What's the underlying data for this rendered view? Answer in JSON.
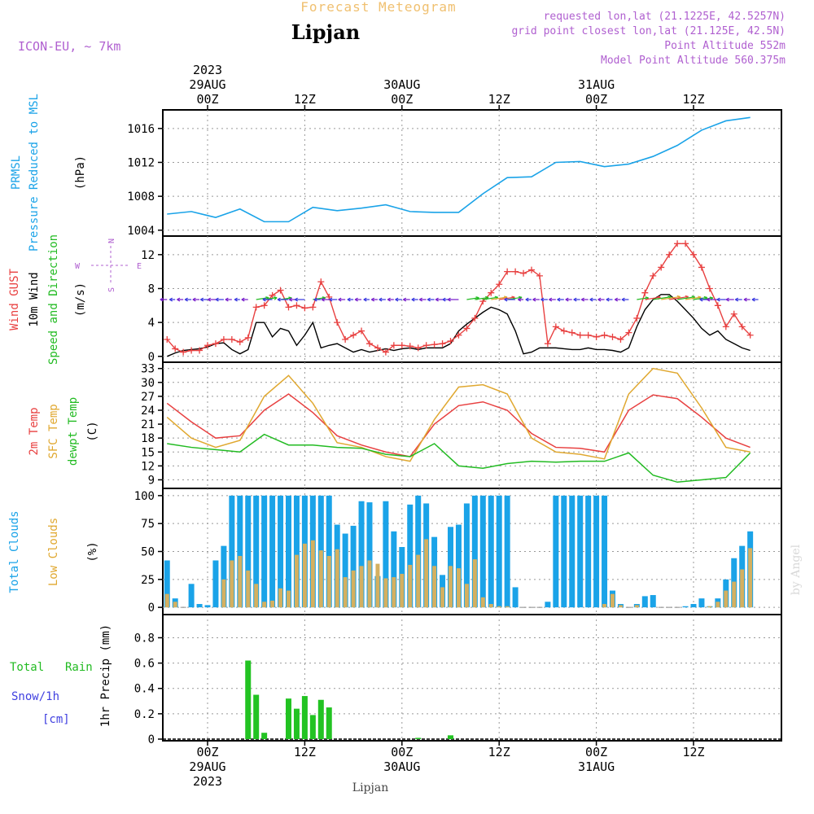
{
  "header": {
    "product": "Forecast Meteogram",
    "location": "Lipjan",
    "model": "ICON-EU, ~ 7km",
    "requested": "requested lon,lat (21.1225E, 42.5257N)",
    "grid_point": "grid point closest lon,lat (21.125E, 42.5N)",
    "point_altitude": "Point Altitude 552m",
    "model_altitude": "Model Point Altitude 560.375m",
    "footer_location": "Lipjan",
    "watermark": "by Angel"
  },
  "colors": {
    "pressure": "#1aa3e8",
    "gust": "#e84040",
    "wind": "#000000",
    "sfc_temp": "#e0a830",
    "temp2m": "#e84040",
    "dewpt": "#22bb22",
    "total_clouds": "#1aa3e8",
    "low_clouds": "#d4b060",
    "rain": "#22c322",
    "snow": "#4040e0",
    "header_purple": "#b060d0",
    "header_orange": "#f0c070"
  },
  "chart_data": [
    {
      "id": "pressure",
      "type": "line",
      "label1": "PRMSL",
      "label2": "Pressure Reduced to MSL",
      "unit": "(hPa)",
      "ylim": [
        1003.5,
        1018
      ],
      "yticks": [
        1004,
        1008,
        1012,
        1016
      ],
      "x_hours_start": 0,
      "series": [
        {
          "name": "PRMSL",
          "x": [
            0,
            3,
            6,
            9,
            12,
            15,
            18,
            21,
            24,
            27,
            30,
            33,
            36,
            39,
            42,
            45,
            48,
            51,
            54,
            57,
            60,
            63,
            66,
            69,
            72
          ],
          "values": [
            1005.9,
            1006.2,
            1005.5,
            1006.5,
            1005.0,
            1005.0,
            1006.7,
            1006.3,
            1006.6,
            1007.0,
            1006.2,
            1006.1,
            1006.1,
            1008.3,
            1010.2,
            1010.3,
            1012.0,
            1012.1,
            1011.5,
            1011.8,
            1012.7,
            1014.0,
            1015.8,
            1016.9,
            1017.3
          ]
        }
      ]
    },
    {
      "id": "wind",
      "type": "line",
      "label1": "Wind GUST",
      "label2": "10m Wind",
      "label3": "Speed and Direction",
      "unit": "(m/s)",
      "compass": {
        "n": "N",
        "s": "S",
        "w": "W",
        "e": "E"
      },
      "ylim": [
        -0.5,
        14
      ],
      "yticks": [
        0,
        4,
        8,
        12
      ],
      "arrow_level": 6.7,
      "series": [
        {
          "name": "Wind GUST",
          "x": [
            0,
            1,
            2,
            3,
            4,
            5,
            6,
            7,
            8,
            9,
            10,
            11,
            12,
            13,
            14,
            15,
            16,
            17,
            18,
            19,
            20,
            21,
            22,
            23,
            24,
            25,
            26,
            27,
            28,
            29,
            30,
            31,
            32,
            33,
            34,
            35,
            36,
            37,
            38,
            39,
            40,
            41,
            42,
            43,
            44,
            45,
            46,
            47,
            48,
            49,
            50,
            51,
            52,
            53,
            54,
            55,
            56,
            57,
            58,
            59,
            60,
            61,
            62,
            63,
            64,
            65,
            66,
            67,
            68,
            69,
            70,
            71,
            72
          ],
          "values": [
            2.0,
            0.9,
            0.5,
            0.7,
            0.7,
            1.3,
            1.5,
            2.0,
            2.0,
            1.7,
            2.2,
            5.8,
            6.0,
            7.2,
            7.8,
            5.8,
            6.0,
            5.7,
            5.8,
            8.8,
            7.0,
            4.0,
            2.0,
            2.5,
            3.0,
            1.5,
            1.0,
            0.5,
            1.3,
            1.3,
            1.2,
            1.0,
            1.3,
            1.4,
            1.5,
            1.8,
            2.5,
            3.3,
            4.5,
            6.5,
            7.5,
            8.5,
            10.0,
            10.0,
            9.8,
            10.2,
            9.5,
            1.5,
            3.5,
            3.0,
            2.8,
            2.5,
            2.5,
            2.3,
            2.5,
            2.3,
            2.0,
            2.8,
            4.5,
            7.5,
            9.5,
            10.5,
            12.0,
            13.3,
            13.3,
            12.0,
            10.5,
            8.0,
            6.0,
            3.5,
            5.0,
            3.5,
            2.5
          ]
        },
        {
          "name": "10m Wind",
          "x": [
            0,
            1,
            2,
            3,
            4,
            5,
            6,
            7,
            8,
            9,
            10,
            11,
            12,
            13,
            14,
            15,
            16,
            17,
            18,
            19,
            20,
            21,
            22,
            23,
            24,
            25,
            26,
            27,
            28,
            29,
            30,
            31,
            32,
            33,
            34,
            35,
            36,
            37,
            38,
            39,
            40,
            41,
            42,
            43,
            44,
            45,
            46,
            47,
            48,
            49,
            50,
            51,
            52,
            53,
            54,
            55,
            56,
            57,
            58,
            59,
            60,
            61,
            62,
            63,
            64,
            65,
            66,
            67,
            68,
            69,
            70,
            71,
            72
          ],
          "values": [
            0.0,
            0.4,
            0.7,
            0.8,
            0.9,
            1.1,
            1.5,
            1.6,
            0.8,
            0.3,
            0.8,
            4.0,
            4.0,
            2.3,
            3.3,
            3.0,
            1.3,
            2.5,
            4.0,
            1.0,
            1.3,
            1.5,
            1.0,
            0.5,
            0.8,
            0.5,
            0.7,
            0.9,
            0.7,
            0.9,
            1.0,
            0.8,
            1.0,
            1.0,
            1.0,
            1.5,
            3.0,
            3.8,
            4.5,
            5.2,
            5.8,
            5.5,
            5.0,
            3.0,
            0.3,
            0.5,
            1.0,
            1.0,
            1.0,
            0.9,
            0.8,
            0.8,
            1.0,
            0.8,
            0.8,
            0.7,
            0.5,
            1.0,
            3.5,
            5.5,
            6.7,
            7.3,
            7.3,
            6.5,
            5.5,
            4.5,
            3.3,
            2.5,
            3.0,
            2.0,
            1.5,
            1.0,
            0.7
          ]
        }
      ]
    },
    {
      "id": "temperature",
      "type": "line",
      "label1": "2m Temp",
      "label2": "SFC Temp",
      "label3": "dewpt Temp",
      "unit": "(C)",
      "ylim": [
        7.5,
        34
      ],
      "yticks": [
        9,
        12,
        15,
        18,
        21,
        24,
        27,
        30,
        33
      ],
      "series": [
        {
          "name": "2m Temp",
          "x": [
            0,
            3,
            6,
            9,
            12,
            15,
            18,
            21,
            24,
            27,
            30,
            33,
            36,
            39,
            42,
            45,
            48,
            51,
            54,
            57,
            60,
            63,
            66,
            69,
            72
          ],
          "values": [
            25.5,
            21.5,
            18.0,
            18.5,
            24.0,
            27.5,
            23.5,
            18.5,
            16.5,
            15.0,
            14.0,
            21.0,
            25.0,
            25.8,
            24.0,
            19.0,
            16.0,
            15.8,
            15.0,
            24.0,
            27.3,
            26.5,
            22.5,
            18.0,
            16.0
          ]
        },
        {
          "name": "SFC Temp",
          "x": [
            0,
            3,
            6,
            9,
            12,
            15,
            18,
            21,
            24,
            27,
            30,
            33,
            36,
            39,
            42,
            45,
            48,
            51,
            54,
            57,
            60,
            63,
            66,
            69,
            72
          ],
          "values": [
            22.5,
            18.0,
            16.0,
            17.5,
            27.0,
            31.5,
            25.5,
            17.0,
            16.0,
            14.0,
            13.0,
            22.0,
            29.0,
            29.5,
            27.5,
            18.0,
            15.0,
            14.5,
            13.5,
            27.5,
            33.0,
            32.0,
            24.5,
            16.0,
            15.0
          ]
        },
        {
          "name": "dewpt Temp",
          "x": [
            0,
            3,
            6,
            9,
            12,
            15,
            18,
            21,
            24,
            27,
            30,
            33,
            36,
            39,
            42,
            45,
            48,
            51,
            54,
            57,
            60,
            63,
            66,
            69,
            72
          ],
          "values": [
            16.8,
            16.0,
            15.5,
            15.0,
            18.8,
            16.5,
            16.5,
            16.0,
            15.8,
            14.5,
            14.0,
            16.8,
            12.0,
            11.5,
            12.5,
            13.0,
            12.8,
            13.0,
            13.0,
            14.8,
            10.0,
            8.5,
            9.0,
            9.5,
            14.8
          ]
        }
      ]
    },
    {
      "id": "clouds",
      "type": "bar",
      "label1": "Total Clouds",
      "label2": "Low Clouds",
      "unit": "(%)",
      "ylim": [
        -5,
        105
      ],
      "yticks": [
        0,
        25,
        50,
        75,
        100
      ],
      "series": [
        {
          "name": "Total Clouds",
          "x": [
            0,
            1,
            2,
            3,
            4,
            5,
            6,
            7,
            8,
            9,
            10,
            11,
            12,
            13,
            14,
            15,
            16,
            17,
            18,
            19,
            20,
            21,
            22,
            23,
            24,
            25,
            26,
            27,
            28,
            29,
            30,
            31,
            32,
            33,
            34,
            35,
            36,
            37,
            38,
            39,
            40,
            41,
            42,
            43,
            44,
            45,
            46,
            47,
            48,
            49,
            50,
            51,
            52,
            53,
            54,
            55,
            56,
            57,
            58,
            59,
            60,
            61,
            62,
            63,
            64,
            65,
            66,
            67,
            68,
            69,
            70,
            71,
            72
          ],
          "values": [
            42,
            8,
            0,
            21,
            3,
            2,
            42,
            55,
            100,
            100,
            100,
            100,
            100,
            100,
            100,
            100,
            100,
            100,
            100,
            100,
            100,
            74,
            66,
            73,
            95,
            94,
            28,
            95,
            68,
            54,
            92,
            100,
            93,
            63,
            29,
            72,
            74,
            93,
            100,
            100,
            100,
            100,
            100,
            18,
            0,
            0,
            0,
            5,
            100,
            100,
            100,
            100,
            100,
            100,
            100,
            15,
            3,
            0,
            3,
            10,
            11,
            0,
            0,
            0,
            1,
            3,
            8,
            1,
            8,
            25,
            44,
            55,
            68
          ]
        },
        {
          "name": "Low Clouds",
          "x": [
            0,
            1,
            2,
            3,
            4,
            5,
            6,
            7,
            8,
            9,
            10,
            11,
            12,
            13,
            14,
            15,
            16,
            17,
            18,
            19,
            20,
            21,
            22,
            23,
            24,
            25,
            26,
            27,
            28,
            29,
            30,
            31,
            32,
            33,
            34,
            35,
            36,
            37,
            38,
            39,
            40,
            41,
            42,
            43,
            44,
            45,
            46,
            47,
            48,
            49,
            50,
            51,
            52,
            53,
            54,
            55,
            56,
            57,
            58,
            59,
            60,
            61,
            62,
            63,
            64,
            65,
            66,
            67,
            68,
            69,
            70,
            71,
            72
          ],
          "values": [
            12,
            5,
            0,
            0,
            0,
            0,
            0,
            25,
            42,
            46,
            33,
            21,
            5,
            6,
            17,
            15,
            47,
            57,
            60,
            51,
            46,
            52,
            27,
            33,
            37,
            42,
            39,
            26,
            27,
            30,
            38,
            47,
            61,
            37,
            18,
            37,
            35,
            21,
            43,
            9,
            3,
            1,
            1,
            0,
            0,
            0,
            0,
            0,
            0,
            0,
            0,
            0,
            0,
            0,
            3,
            12,
            2,
            0,
            2,
            0,
            0,
            0,
            0,
            0,
            0,
            0,
            0,
            1,
            5,
            15,
            23,
            34,
            53
          ]
        }
      ]
    },
    {
      "id": "precip",
      "type": "bar",
      "label_total": "Total",
      "label_rain": "Rain",
      "label_snow": "Snow/1h",
      "label_cm": "[cm]",
      "unit": "1hr Precip (mm)",
      "ylim": [
        0,
        0.97
      ],
      "yticks": [
        0,
        0.2,
        0.4,
        0.6,
        0.8
      ],
      "ytick_labels": [
        "0",
        "0.2",
        "0.4",
        "0.6",
        "0.8"
      ],
      "series": [
        {
          "name": "Rain",
          "x": [
            10,
            11,
            12,
            15,
            16,
            17,
            18,
            19,
            20,
            31,
            35
          ],
          "values": [
            0.62,
            0.35,
            0.05,
            0.32,
            0.24,
            0.34,
            0.19,
            0.31,
            0.25,
            0.01,
            0.03
          ]
        }
      ]
    }
  ],
  "time_axis": {
    "top": [
      {
        "hour": 0,
        "lines": [
          "2023",
          "29AUG",
          "00Z"
        ]
      },
      {
        "hour": 12,
        "lines": [
          "12Z"
        ]
      },
      {
        "hour": 24,
        "lines": [
          "30AUG",
          "00Z"
        ]
      },
      {
        "hour": 36,
        "lines": [
          "12Z"
        ]
      },
      {
        "hour": 48,
        "lines": [
          "31AUG",
          "00Z"
        ]
      },
      {
        "hour": 60,
        "lines": [
          "12Z"
        ]
      }
    ],
    "bottom": [
      {
        "hour": 0,
        "lines": [
          "00Z",
          "29AUG",
          "2023"
        ]
      },
      {
        "hour": 12,
        "lines": [
          "12Z"
        ]
      },
      {
        "hour": 24,
        "lines": [
          "00Z",
          "30AUG"
        ]
      },
      {
        "hour": 36,
        "lines": [
          "12Z"
        ]
      },
      {
        "hour": 48,
        "lines": [
          "00Z",
          "31AUG"
        ]
      },
      {
        "hour": 60,
        "lines": [
          "12Z"
        ]
      }
    ]
  }
}
